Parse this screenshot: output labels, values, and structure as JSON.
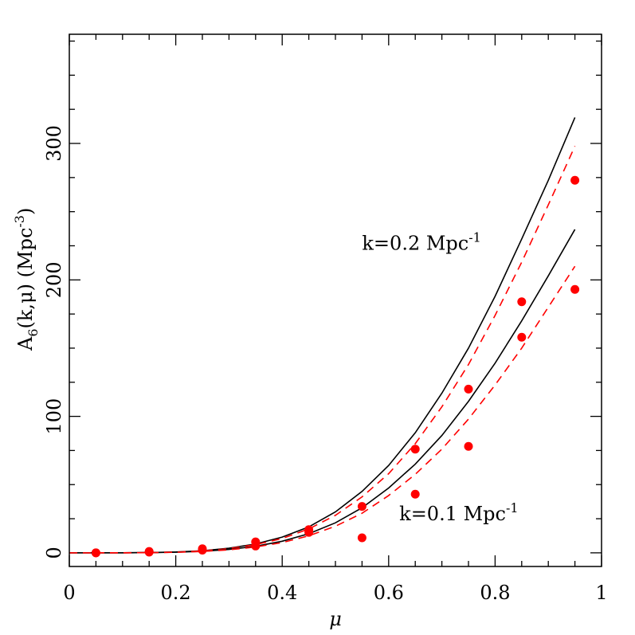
{
  "chart_data": {
    "type": "line",
    "xlabel": "μ",
    "ylabel": "A6(k,μ)  (Mpc-3)",
    "ylabel_parts": {
      "main": "A",
      "sub": "6",
      "args": "(k,μ)  (Mpc",
      "sup": "-3",
      "close": ")"
    },
    "xlim": [
      0,
      1
    ],
    "ylim": [
      -10,
      380
    ],
    "x_ticks": [
      "0",
      "0.2",
      "0.4",
      "0.6",
      "0.8",
      "1"
    ],
    "x_tick_values": [
      0,
      0.2,
      0.4,
      0.6,
      0.8,
      1.0
    ],
    "y_ticks": [
      "0",
      "100",
      "200",
      "300"
    ],
    "y_tick_values": [
      0,
      100,
      200,
      300
    ],
    "grid": false,
    "series_colors": {
      "theory": "#000000",
      "model": "#ff0000",
      "points": "#ff0000"
    },
    "annotations": [
      {
        "main": "k=0.2 Mpc",
        "sup": "-1",
        "x": 0.55,
        "y": 222
      },
      {
        "main": "k=0.1 Mpc",
        "sup": "-1",
        "x": 0.62,
        "y": 24
      }
    ],
    "series": [
      {
        "style": "solid",
        "group": "k=0.2",
        "x": [
          0,
          0.05,
          0.1,
          0.15,
          0.2,
          0.25,
          0.3,
          0.35,
          0.4,
          0.45,
          0.5,
          0.55,
          0.6,
          0.65,
          0.7,
          0.75,
          0.8,
          0.85,
          0.9,
          0.95
        ],
        "y": [
          0,
          0,
          0.05,
          0.2,
          0.6,
          1.5,
          3.4,
          6.5,
          11.5,
          19,
          30,
          45,
          64,
          88,
          117,
          150,
          188,
          230,
          273,
          319
        ]
      },
      {
        "style": "dashed",
        "group": "k=0.2",
        "x": [
          0,
          0.05,
          0.1,
          0.15,
          0.2,
          0.25,
          0.3,
          0.35,
          0.4,
          0.45,
          0.5,
          0.55,
          0.6,
          0.65,
          0.7,
          0.75,
          0.8,
          0.85,
          0.9,
          0.95
        ],
        "y": [
          0,
          0,
          0.05,
          0.2,
          0.55,
          1.4,
          3.1,
          6,
          10.5,
          17.5,
          27.5,
          41,
          58,
          80,
          107,
          138,
          174,
          213,
          255,
          298
        ]
      },
      {
        "style": "solid",
        "group": "k=0.1",
        "x": [
          0,
          0.05,
          0.1,
          0.15,
          0.2,
          0.25,
          0.3,
          0.35,
          0.4,
          0.45,
          0.5,
          0.55,
          0.6,
          0.65,
          0.7,
          0.75,
          0.8,
          0.85,
          0.9,
          0.95
        ],
        "y": [
          0,
          0,
          0.04,
          0.15,
          0.45,
          1.1,
          2.5,
          4.8,
          8.5,
          14,
          22,
          33,
          47.5,
          65,
          86,
          111,
          139,
          170,
          203,
          237
        ]
      },
      {
        "style": "dashed",
        "group": "k=0.1",
        "x": [
          0,
          0.05,
          0.1,
          0.15,
          0.2,
          0.25,
          0.3,
          0.35,
          0.4,
          0.45,
          0.5,
          0.55,
          0.6,
          0.65,
          0.7,
          0.75,
          0.8,
          0.85,
          0.9,
          0.95
        ],
        "y": [
          0,
          0,
          0.03,
          0.12,
          0.4,
          1,
          2.2,
          4.3,
          7.5,
          12.5,
          19.5,
          29,
          42,
          57.5,
          76,
          98,
          123,
          150,
          180,
          210
        ]
      },
      {
        "style": "points",
        "group": "k=0.2",
        "x": [
          0.05,
          0.15,
          0.25,
          0.35,
          0.45,
          0.55,
          0.65,
          0.75,
          0.85,
          0.95
        ],
        "y": [
          0,
          1,
          3,
          8,
          17,
          34,
          76,
          120,
          184,
          273
        ]
      },
      {
        "style": "points",
        "group": "k=0.1",
        "x": [
          0.05,
          0.15,
          0.25,
          0.35,
          0.45,
          0.55,
          0.65,
          0.75,
          0.85,
          0.95
        ],
        "y": [
          0,
          0.5,
          2,
          5,
          15,
          11,
          43,
          78,
          158,
          193
        ]
      }
    ]
  }
}
